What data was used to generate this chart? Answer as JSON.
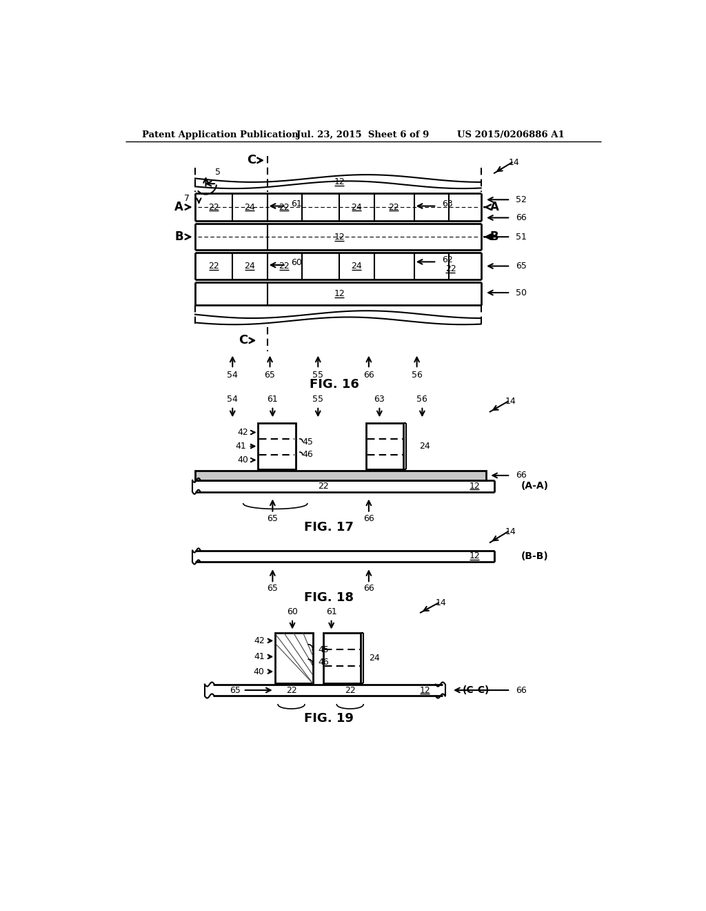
{
  "bg_color": "#ffffff",
  "header_left": "Patent Application Publication",
  "header_mid": "Jul. 23, 2015  Sheet 6 of 9",
  "header_right": "US 2015/0206886 A1",
  "fig16_title": "FIG. 16",
  "fig17_title": "FIG. 17",
  "fig18_title": "FIG. 18",
  "fig19_title": "FIG. 19"
}
